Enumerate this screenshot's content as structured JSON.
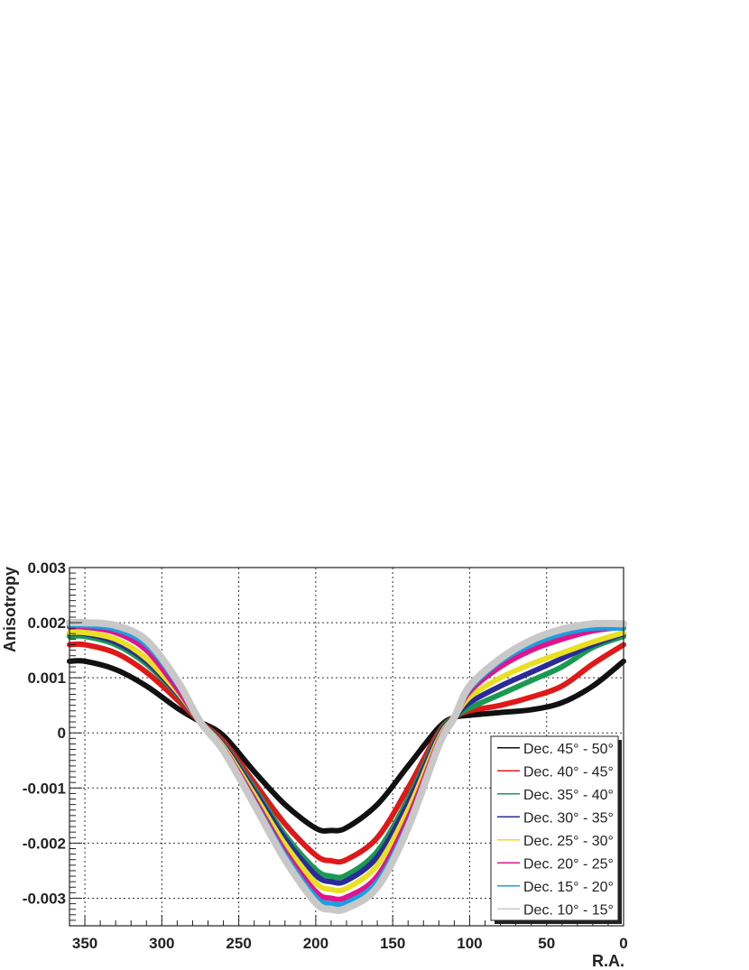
{
  "chart_data": {
    "type": "line",
    "xlabel": "R.A.",
    "ylabel": "Anisotropy",
    "xlim": [
      360,
      0
    ],
    "ylim": [
      -0.0035,
      0.003
    ],
    "x_reversed": true,
    "grid": true,
    "legend_position": "bottom-right",
    "x_ticks": [
      {
        "value": 350,
        "label": "350"
      },
      {
        "value": 300,
        "label": "300"
      },
      {
        "value": 250,
        "label": "250"
      },
      {
        "value": 200,
        "label": "200"
      },
      {
        "value": 150,
        "label": "150"
      },
      {
        "value": 100,
        "label": "100"
      },
      {
        "value": 50,
        "label": "50"
      },
      {
        "value": 0,
        "label": "0"
      }
    ],
    "y_ticks": [
      {
        "value": 0.003,
        "label": "0.003"
      },
      {
        "value": 0.002,
        "label": "0.002"
      },
      {
        "value": 0.001,
        "label": "0.001"
      },
      {
        "value": 0,
        "label": "0"
      },
      {
        "value": -0.001,
        "label": "-0.001"
      },
      {
        "value": -0.002,
        "label": "-0.002"
      },
      {
        "value": -0.003,
        "label": "-0.003"
      }
    ],
    "x": [
      0,
      20,
      40,
      60,
      80,
      100,
      110,
      120,
      140,
      160,
      180,
      190,
      200,
      220,
      240,
      260,
      275,
      290,
      310,
      330,
      350,
      360
    ],
    "series": [
      {
        "name": "Dec. 45° - 50°",
        "color": "#111111",
        "values": [
          0.0013,
          0.00085,
          0.00055,
          0.00042,
          0.00037,
          0.00032,
          0.00028,
          0.0001,
          -0.0006,
          -0.0013,
          -0.00172,
          -0.00177,
          -0.00173,
          -0.0013,
          -0.0007,
          -5e-05,
          0.0002,
          0.00045,
          0.00085,
          0.00115,
          0.0013,
          0.0013
        ]
      },
      {
        "name": "Dec. 40° - 45°",
        "color": "#e01818",
        "values": [
          0.0016,
          0.00125,
          0.00085,
          0.00065,
          0.0005,
          0.0004,
          0.00028,
          2e-05,
          -0.001,
          -0.0019,
          -0.0023,
          -0.00232,
          -0.00222,
          -0.00165,
          -0.0009,
          -0.00015,
          0.0002,
          0.0006,
          0.0011,
          0.00145,
          0.0016,
          0.0016
        ]
      },
      {
        "name": "Dec. 35° - 40°",
        "color": "#1a9a50",
        "values": [
          0.00175,
          0.00155,
          0.0012,
          0.00095,
          0.0007,
          0.00045,
          0.00028,
          -2e-05,
          -0.0012,
          -0.00215,
          -0.00258,
          -0.0026,
          -0.00248,
          -0.00185,
          -0.001,
          -0.0002,
          0.0002,
          0.0007,
          0.00125,
          0.0016,
          0.00175,
          0.00175
        ]
      },
      {
        "name": "Dec. 30° - 35°",
        "color": "#2a2a9a",
        "values": [
          0.0018,
          0.0016,
          0.00135,
          0.0011,
          0.00085,
          0.00055,
          0.00028,
          -5e-05,
          -0.00128,
          -0.00225,
          -0.00268,
          -0.0027,
          -0.00258,
          -0.00192,
          -0.00105,
          -0.00022,
          0.0002,
          0.00072,
          0.0013,
          0.00165,
          0.0018,
          0.0018
        ]
      },
      {
        "name": "Dec. 25° - 30°",
        "color": "#e8e020",
        "values": [
          0.00182,
          0.00165,
          0.00145,
          0.00125,
          0.001,
          0.00065,
          0.00028,
          -0.0001,
          -0.0014,
          -0.0024,
          -0.00282,
          -0.00284,
          -0.00272,
          -0.00202,
          -0.00112,
          -0.00025,
          0.0002,
          0.00075,
          0.00135,
          0.0017,
          0.00182,
          0.00182
        ]
      },
      {
        "name": "Dec. 20° - 25°",
        "color": "#e0148c",
        "values": [
          0.00192,
          0.00185,
          0.0017,
          0.0015,
          0.0012,
          0.00075,
          0.00028,
          -0.00015,
          -0.00155,
          -0.0026,
          -0.00298,
          -0.003,
          -0.00288,
          -0.00215,
          -0.0012,
          -0.00028,
          0.0002,
          0.0008,
          0.0015,
          0.00182,
          0.00192,
          0.00192
        ]
      },
      {
        "name": "Dec. 15° - 20°",
        "color": "#1aa0e0",
        "values": [
          0.0019,
          0.0019,
          0.0018,
          0.0016,
          0.0013,
          0.0008,
          0.00028,
          -0.0002,
          -0.00165,
          -0.0027,
          -0.00308,
          -0.0031,
          -0.00298,
          -0.00222,
          -0.00125,
          -0.0003,
          0.0002,
          0.0009,
          0.0016,
          0.00188,
          0.00195,
          0.00195
        ]
      },
      {
        "name": "Dec. 10° - 15°",
        "color": "#c8c8c8",
        "values": [
          0.00198,
          0.00198,
          0.00188,
          0.00168,
          0.00135,
          0.00085,
          0.00028,
          -0.00022,
          -0.00172,
          -0.0028,
          -0.00318,
          -0.0032,
          -0.00308,
          -0.0023,
          -0.0013,
          -0.00032,
          0.0002,
          0.00095,
          0.00168,
          0.00195,
          0.002,
          0.002
        ]
      }
    ]
  }
}
